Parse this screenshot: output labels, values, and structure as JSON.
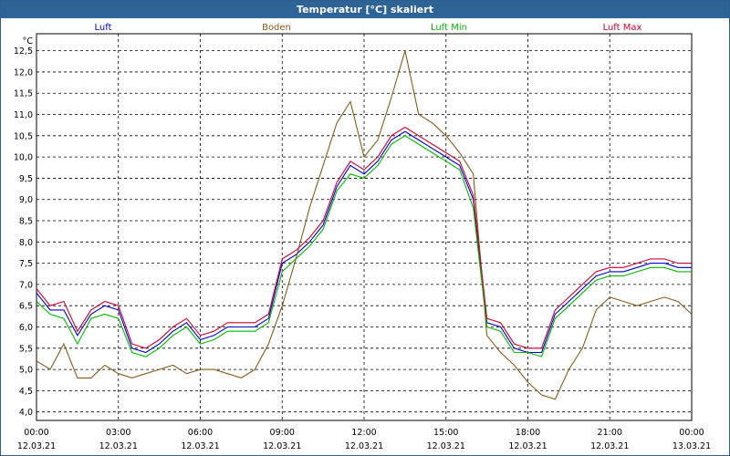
{
  "window": {
    "title": "Temperatur [°C] skaliert"
  },
  "chart_data": {
    "type": "line",
    "title": "Temperatur [°C] skaliert",
    "ylabel": "°C",
    "xlabel": "",
    "ylim": [
      3.8,
      12.9
    ],
    "xlim": [
      0,
      24
    ],
    "grid": true,
    "legend_position": "top",
    "y_ticks": [
      "4,0",
      "4,5",
      "5,0",
      "5,5",
      "6,0",
      "6,5",
      "7,0",
      "7,5",
      "8,0",
      "8,5",
      "9,0",
      "9,5",
      "10,0",
      "10,5",
      "11,0",
      "11,5",
      "12,0",
      "12,5"
    ],
    "y_tick_values": [
      4.0,
      4.5,
      5.0,
      5.5,
      6.0,
      6.5,
      7.0,
      7.5,
      8.0,
      8.5,
      9.0,
      9.5,
      10.0,
      10.5,
      11.0,
      11.5,
      12.0,
      12.5
    ],
    "x_ticks": [
      {
        "value": 0,
        "time": "00:00",
        "date": "12.03.21"
      },
      {
        "value": 3,
        "time": "03:00",
        "date": "12.03.21"
      },
      {
        "value": 6,
        "time": "06:00",
        "date": "12.03.21"
      },
      {
        "value": 9,
        "time": "09:00",
        "date": "12.03.21"
      },
      {
        "value": 12,
        "time": "12:00",
        "date": "12.03.21"
      },
      {
        "value": 15,
        "time": "15:00",
        "date": "12.03.21"
      },
      {
        "value": 18,
        "time": "18:00",
        "date": "12.03.21"
      },
      {
        "value": 21,
        "time": "21:00",
        "date": "12.03.21"
      },
      {
        "value": 24,
        "time": "00:00",
        "date": "13.03.21"
      }
    ],
    "x": [
      0,
      0.5,
      1,
      1.5,
      2,
      2.5,
      3,
      3.5,
      4,
      4.5,
      5,
      5.5,
      6,
      6.5,
      7,
      7.5,
      8,
      8.5,
      9,
      9.5,
      10,
      10.5,
      11,
      11.5,
      12,
      12.5,
      13,
      13.5,
      14,
      14.5,
      15,
      15.5,
      16,
      16.5,
      17,
      17.5,
      18,
      18.5,
      19,
      19.5,
      20,
      20.5,
      21,
      21.5,
      22,
      22.5,
      23,
      23.5,
      24
    ],
    "series": [
      {
        "name": "Luft",
        "color": "#0000cc",
        "values": [
          6.8,
          6.4,
          6.4,
          5.8,
          6.3,
          6.5,
          6.4,
          5.5,
          5.4,
          5.6,
          5.9,
          6.1,
          5.7,
          5.8,
          6.0,
          6.0,
          6.0,
          6.2,
          7.5,
          7.7,
          8.0,
          8.4,
          9.3,
          9.8,
          9.6,
          9.9,
          10.4,
          10.6,
          10.4,
          10.2,
          10.0,
          9.8,
          9.0,
          6.1,
          6.0,
          5.5,
          5.4,
          5.4,
          6.3,
          6.6,
          6.9,
          7.2,
          7.3,
          7.3,
          7.4,
          7.5,
          7.5,
          7.4,
          7.4
        ]
      },
      {
        "name": "Boden",
        "color": "#8b5a1b",
        "values": [
          5.2,
          5.0,
          5.6,
          4.8,
          4.8,
          5.1,
          4.9,
          4.8,
          4.9,
          5.0,
          5.1,
          4.9,
          5.0,
          5.0,
          4.9,
          4.8,
          5.0,
          5.6,
          6.5,
          7.6,
          8.8,
          9.8,
          10.8,
          11.3,
          10.0,
          10.4,
          11.4,
          12.5,
          11.0,
          10.8,
          10.5,
          10.1,
          9.6,
          5.8,
          5.4,
          5.1,
          4.7,
          4.4,
          4.3,
          5.0,
          5.5,
          6.4,
          6.7,
          6.6,
          6.5,
          6.6,
          6.7,
          6.6,
          6.3
        ]
      },
      {
        "name": "Luft Min",
        "color": "#00bb00",
        "values": [
          6.6,
          6.3,
          6.2,
          5.6,
          6.2,
          6.3,
          6.2,
          5.4,
          5.3,
          5.5,
          5.8,
          6.0,
          5.6,
          5.7,
          5.9,
          5.9,
          5.9,
          6.1,
          7.3,
          7.6,
          7.9,
          8.3,
          9.2,
          9.6,
          9.5,
          9.8,
          10.3,
          10.5,
          10.3,
          10.1,
          9.9,
          9.7,
          8.8,
          6.0,
          5.9,
          5.4,
          5.4,
          5.3,
          6.2,
          6.5,
          6.8,
          7.1,
          7.2,
          7.2,
          7.3,
          7.4,
          7.4,
          7.3,
          7.3
        ]
      },
      {
        "name": "Luft Max",
        "color": "#cc0033",
        "values": [
          6.9,
          6.5,
          6.6,
          5.9,
          6.4,
          6.6,
          6.5,
          5.6,
          5.5,
          5.7,
          6.0,
          6.2,
          5.8,
          5.9,
          6.1,
          6.1,
          6.1,
          6.3,
          7.6,
          7.8,
          8.1,
          8.5,
          9.4,
          9.9,
          9.7,
          10.0,
          10.5,
          10.7,
          10.5,
          10.3,
          10.1,
          9.9,
          9.1,
          6.2,
          6.1,
          5.6,
          5.5,
          5.5,
          6.4,
          6.7,
          7.0,
          7.3,
          7.4,
          7.4,
          7.5,
          7.6,
          7.6,
          7.5,
          7.5
        ]
      }
    ]
  }
}
